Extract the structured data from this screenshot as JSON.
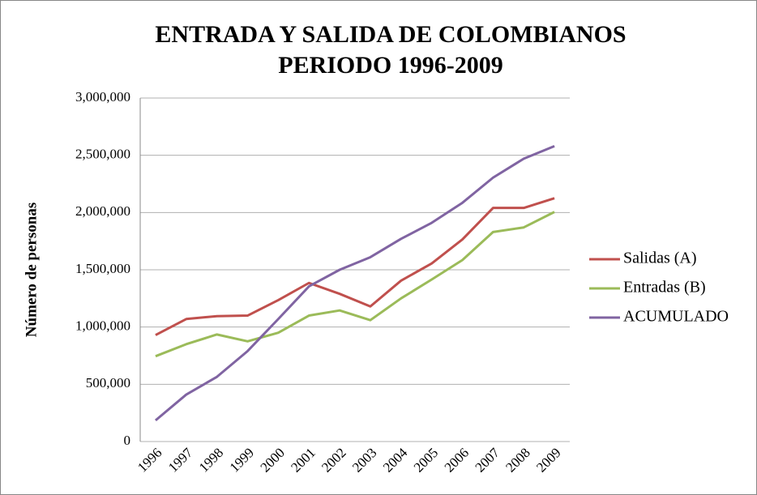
{
  "chart_data": {
    "type": "line",
    "title": [
      "ENTRADA Y SALIDA DE COLOMBIANOS",
      "PERIODO 1996-2009"
    ],
    "y_label": "Número de personas",
    "categories": [
      "1996",
      "1997",
      "1998",
      "1999",
      "2000",
      "2001",
      "2002",
      "2003",
      "2004",
      "2005",
      "2006",
      "2007",
      "2008",
      "2009"
    ],
    "series": [
      {
        "name": "Salidas (A)",
        "color": "#c0504d",
        "values": [
          930000,
          1070000,
          1095000,
          1100000,
          1235000,
          1385000,
          1290000,
          1180000,
          1405000,
          1555000,
          1765000,
          2040000,
          2040000,
          2125000
        ]
      },
      {
        "name": "Entradas (B)",
        "color": "#9bbb59",
        "values": [
          745000,
          850000,
          935000,
          875000,
          950000,
          1100000,
          1145000,
          1060000,
          1250000,
          1415000,
          1585000,
          1830000,
          1870000,
          2005000
        ]
      },
      {
        "name": "ACUMULADO",
        "color": "#8064a2",
        "values": [
          185000,
          410000,
          565000,
          790000,
          1070000,
          1355000,
          1500000,
          1610000,
          1770000,
          1910000,
          2085000,
          2305000,
          2470000,
          2580000
        ]
      }
    ],
    "ylim": [
      0,
      3000000
    ],
    "yticks": [
      0,
      {
        "value": 500000,
        "label": "500,000"
      },
      {
        "value": 1000000,
        "label": "1,000,000"
      },
      {
        "value": 1500000,
        "label": "1,500,000"
      },
      {
        "value": 2000000,
        "label": "2,000,000"
      },
      {
        "value": 2500000,
        "label": "2,500,000"
      },
      {
        "value": 3000000,
        "label": "3,000,000"
      }
    ],
    "grid": true,
    "legend": "right"
  }
}
